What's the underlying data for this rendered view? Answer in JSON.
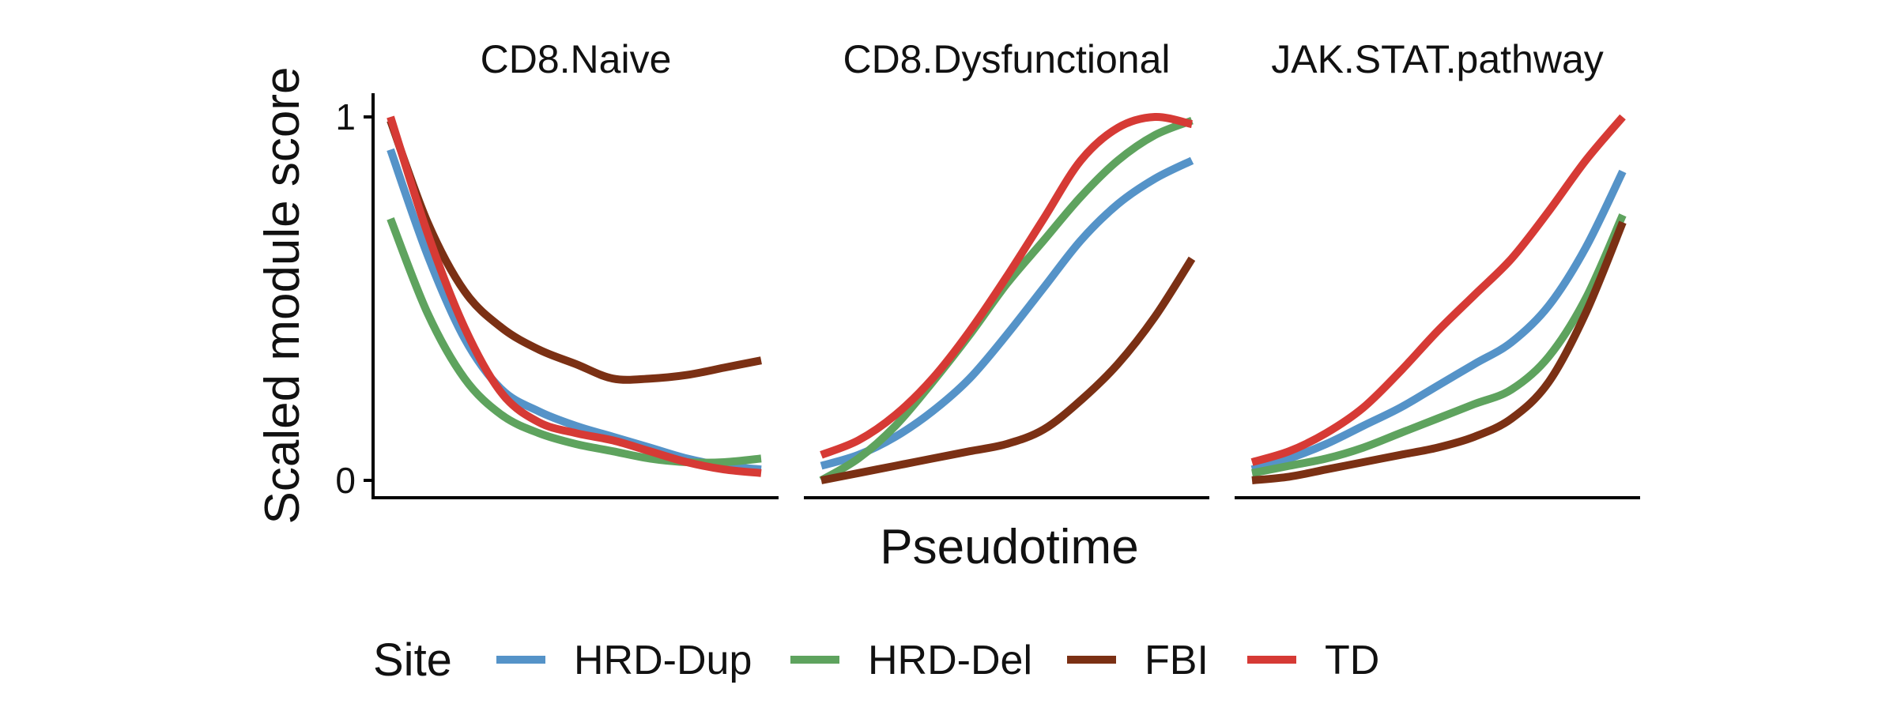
{
  "chart_data": {
    "type": "line",
    "ylabel": "Scaled module score",
    "xlabel": "Pseudotime",
    "ylim": [
      0,
      1
    ],
    "xlim": [
      0,
      1
    ],
    "yticks": [
      {
        "value": 0,
        "label": "0"
      },
      {
        "value": 1,
        "label": "1"
      }
    ],
    "legend": {
      "title": "Site",
      "placement": "bottom",
      "entries": [
        {
          "name": "HRD-Dup",
          "color": "#5593c8"
        },
        {
          "name": "HRD-Del",
          "color": "#5ea35e"
        },
        {
          "name": "FBI",
          "color": "#7b3014"
        },
        {
          "name": "TD",
          "color": "#d63a35"
        }
      ]
    },
    "facets": [
      {
        "title": "CD8.Naive",
        "series": [
          {
            "name": "HRD-Dup",
            "x": [
              0,
              0.1,
              0.2,
              0.3,
              0.4,
              0.5,
              0.6,
              0.7,
              0.8,
              0.9,
              1.0
            ],
            "y": [
              0.91,
              0.62,
              0.39,
              0.25,
              0.19,
              0.15,
              0.12,
              0.09,
              0.06,
              0.04,
              0.03
            ]
          },
          {
            "name": "HRD-Del",
            "x": [
              0,
              0.1,
              0.2,
              0.3,
              0.4,
              0.5,
              0.6,
              0.7,
              0.8,
              0.9,
              1.0
            ],
            "y": [
              0.72,
              0.46,
              0.28,
              0.18,
              0.13,
              0.1,
              0.08,
              0.06,
              0.05,
              0.05,
              0.06
            ]
          },
          {
            "name": "FBI",
            "x": [
              0,
              0.1,
              0.2,
              0.3,
              0.4,
              0.5,
              0.6,
              0.7,
              0.8,
              0.9,
              1.0
            ],
            "y": [
              0.99,
              0.71,
              0.52,
              0.42,
              0.36,
              0.32,
              0.28,
              0.28,
              0.29,
              0.31,
              0.33
            ]
          },
          {
            "name": "TD",
            "x": [
              0,
              0.1,
              0.2,
              0.3,
              0.4,
              0.5,
              0.6,
              0.7,
              0.8,
              0.9,
              1.0
            ],
            "y": [
              1.0,
              0.68,
              0.42,
              0.24,
              0.16,
              0.13,
              0.11,
              0.08,
              0.05,
              0.03,
              0.02
            ]
          }
        ]
      },
      {
        "title": "CD8.Dysfunctional",
        "series": [
          {
            "name": "HRD-Dup",
            "x": [
              0,
              0.1,
              0.2,
              0.3,
              0.4,
              0.5,
              0.6,
              0.7,
              0.8,
              0.9,
              1.0
            ],
            "y": [
              0.04,
              0.07,
              0.12,
              0.19,
              0.28,
              0.4,
              0.53,
              0.66,
              0.76,
              0.83,
              0.88
            ]
          },
          {
            "name": "HRD-Del",
            "x": [
              0,
              0.1,
              0.2,
              0.3,
              0.4,
              0.5,
              0.6,
              0.7,
              0.8,
              0.9,
              1.0
            ],
            "y": [
              0.0,
              0.06,
              0.15,
              0.27,
              0.4,
              0.54,
              0.66,
              0.78,
              0.88,
              0.95,
              0.99
            ]
          },
          {
            "name": "FBI",
            "x": [
              0,
              0.1,
              0.2,
              0.3,
              0.4,
              0.5,
              0.6,
              0.7,
              0.8,
              0.9,
              1.0
            ],
            "y": [
              0.0,
              0.02,
              0.04,
              0.06,
              0.08,
              0.1,
              0.14,
              0.22,
              0.32,
              0.45,
              0.61
            ]
          },
          {
            "name": "TD",
            "x": [
              0,
              0.1,
              0.2,
              0.3,
              0.4,
              0.5,
              0.6,
              0.7,
              0.8,
              0.9,
              1.0
            ],
            "y": [
              0.07,
              0.11,
              0.18,
              0.28,
              0.41,
              0.56,
              0.72,
              0.88,
              0.97,
              1.0,
              0.98
            ]
          }
        ]
      },
      {
        "title": "JAK.STAT.pathway",
        "series": [
          {
            "name": "HRD-Dup",
            "x": [
              0,
              0.1,
              0.2,
              0.3,
              0.4,
              0.5,
              0.6,
              0.7,
              0.8,
              0.9,
              1.0
            ],
            "y": [
              0.03,
              0.06,
              0.1,
              0.15,
              0.2,
              0.26,
              0.32,
              0.38,
              0.48,
              0.64,
              0.85
            ]
          },
          {
            "name": "HRD-Del",
            "x": [
              0,
              0.1,
              0.2,
              0.3,
              0.4,
              0.5,
              0.6,
              0.7,
              0.8,
              0.9,
              1.0
            ],
            "y": [
              0.02,
              0.04,
              0.06,
              0.09,
              0.13,
              0.17,
              0.21,
              0.25,
              0.34,
              0.5,
              0.73
            ]
          },
          {
            "name": "FBI",
            "x": [
              0,
              0.1,
              0.2,
              0.3,
              0.4,
              0.5,
              0.6,
              0.7,
              0.8,
              0.9,
              1.0
            ],
            "y": [
              0.0,
              0.01,
              0.03,
              0.05,
              0.07,
              0.09,
              0.12,
              0.17,
              0.27,
              0.46,
              0.71
            ]
          },
          {
            "name": "TD",
            "x": [
              0,
              0.1,
              0.2,
              0.3,
              0.4,
              0.5,
              0.6,
              0.7,
              0.8,
              0.9,
              1.0
            ],
            "y": [
              0.05,
              0.08,
              0.13,
              0.2,
              0.3,
              0.41,
              0.51,
              0.61,
              0.74,
              0.88,
              1.0
            ]
          }
        ]
      }
    ]
  }
}
